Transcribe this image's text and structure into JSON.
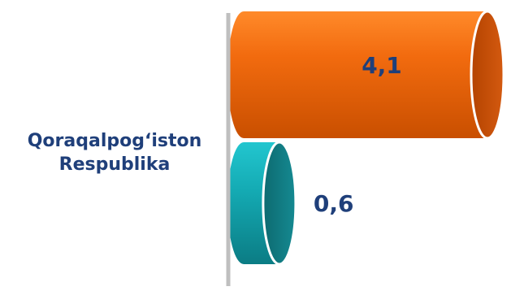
{
  "chart_data": {
    "type": "bar",
    "orientation": "horizontal",
    "style": "3d-cylinder",
    "category_lines": [
      "Qoraqalpog‘iston",
      "Respublika"
    ],
    "series": [
      {
        "value": 4.1,
        "label": "4,1",
        "color": "#f26b0f"
      },
      {
        "value": 0.6,
        "label": "0,6",
        "color": "#1aa5ad"
      }
    ],
    "xlim": [
      0,
      4.1
    ],
    "label_color": "#1f3f7a",
    "axis_color": "#bfbfbf"
  }
}
